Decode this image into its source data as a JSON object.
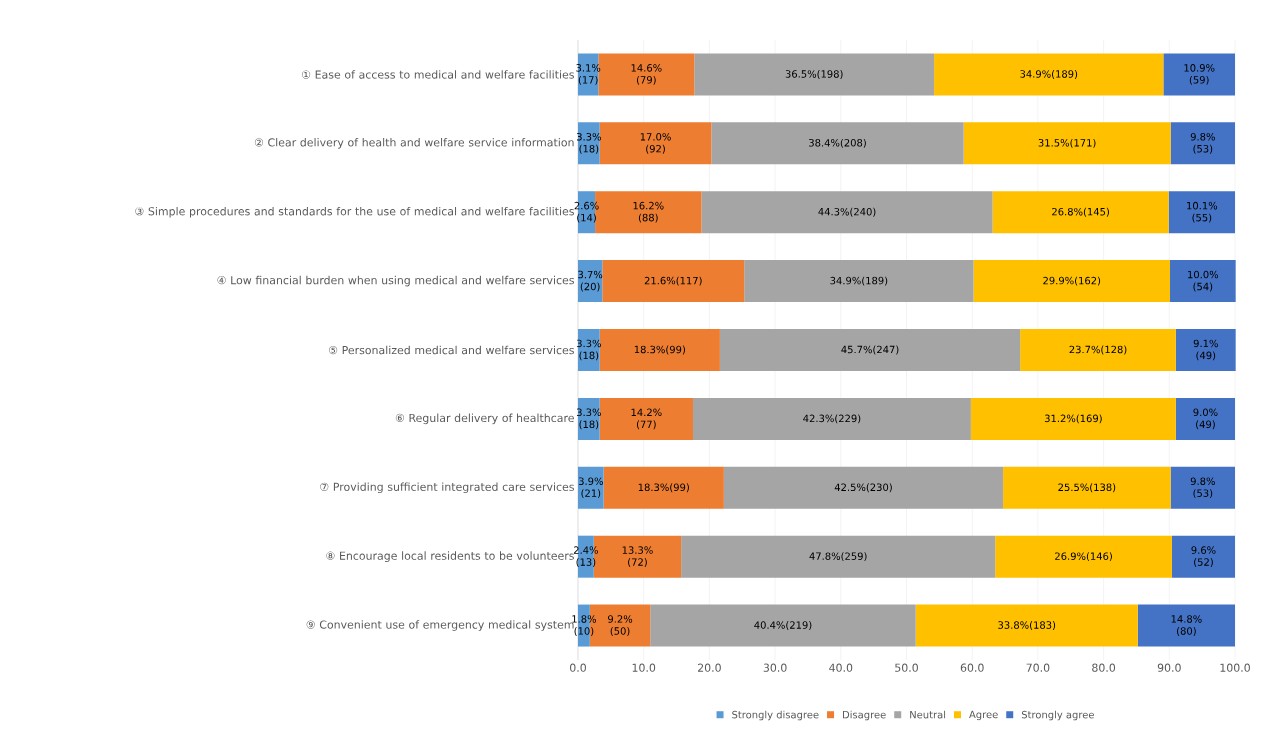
{
  "chart_data": {
    "type": "bar",
    "orientation": "horizontal",
    "stacked": true,
    "categories": [
      "① Ease of access to medical and welfare facilities",
      "② Clear delivery of health and welfare service information",
      "③ Simple procedures and standards for the use of medical and welfare facilities",
      "④ Low financial burden when using medical and welfare services",
      "⑤ Personalized medical and welfare services",
      "⑥ Regular delivery of healthcare",
      "⑦ Providing sufficient integrated care services",
      "⑧ Encourage local residents to be volunteers",
      "⑨ Convenient use of emergency medical system"
    ],
    "series": [
      {
        "name": "Strongly disagree",
        "color": "#5b9bd5",
        "values": [
          3.1,
          3.3,
          2.6,
          3.7,
          3.3,
          3.3,
          3.9,
          2.4,
          1.8
        ],
        "value_labels": [
          "3.1% (17)",
          "3.3% (18)",
          "2.6% (14)",
          "3.7% (20)",
          "3.3% (18)",
          "3.3% (18)",
          "3.9% (21)",
          "2.4% (13)",
          "1.8% (10)"
        ]
      },
      {
        "name": "Disagree",
        "color": "#ed7d31",
        "values": [
          14.6,
          17.0,
          16.2,
          21.6,
          18.3,
          14.2,
          18.3,
          13.3,
          9.2
        ],
        "value_labels": [
          "14.6% (79)",
          "17.0% (92)",
          "16.2% (88)",
          "21.6%(117)",
          "18.3%(99)",
          "14.2% (77)",
          "18.3%(99)",
          "13.3% (72)",
          "9.2% (50)"
        ]
      },
      {
        "name": "Neutral",
        "color": "#a5a5a5",
        "values": [
          36.5,
          38.4,
          44.3,
          34.9,
          45.7,
          42.3,
          42.5,
          47.8,
          40.4
        ],
        "value_labels": [
          "36.5%(198)",
          "38.4%(208)",
          "44.3%(240)",
          "34.9%(189)",
          "45.7%(247)",
          "42.3%(229)",
          "42.5%(230)",
          "47.8%(259)",
          "40.4%(219)"
        ]
      },
      {
        "name": "Agree",
        "color": "#ffc000",
        "values": [
          34.9,
          31.5,
          26.8,
          29.9,
          23.7,
          31.2,
          25.5,
          26.9,
          33.8
        ],
        "value_labels": [
          "34.9%(189)",
          "31.5%(171)",
          "26.8%(145)",
          "29.9%(162)",
          "23.7%(128)",
          "31.2%(169)",
          "25.5%(138)",
          "26.9%(146)",
          "33.8%(183)"
        ]
      },
      {
        "name": "Strongly agree",
        "color": "#4472c4",
        "values": [
          10.9,
          9.8,
          10.1,
          10.0,
          9.1,
          9.0,
          9.8,
          9.6,
          14.8
        ],
        "value_labels": [
          "10.9% (59)",
          "9.8% (53)",
          "10.1% (55)",
          "10.0% (54)",
          "9.1% (49)",
          "9.0% (49)",
          "9.8% (53)",
          "9.6% (52)",
          "14.8% (80)"
        ]
      }
    ],
    "xlim": [
      0,
      100
    ],
    "xticks": [
      {
        "value": 0,
        "label": "0.0"
      },
      {
        "value": 10,
        "label": "10.0"
      },
      {
        "value": 20,
        "label": "20.0"
      },
      {
        "value": 30,
        "label": "30.0"
      },
      {
        "value": 40,
        "label": "40.0"
      },
      {
        "value": 50,
        "label": "50.0"
      },
      {
        "value": 60,
        "label": "60.0"
      },
      {
        "value": 70,
        "label": "70.0"
      },
      {
        "value": 80,
        "label": "80.0"
      },
      {
        "value": 90,
        "label": "90.0"
      },
      {
        "value": 100,
        "label": "100.0"
      }
    ],
    "grid": "x",
    "legend": "bottom"
  }
}
